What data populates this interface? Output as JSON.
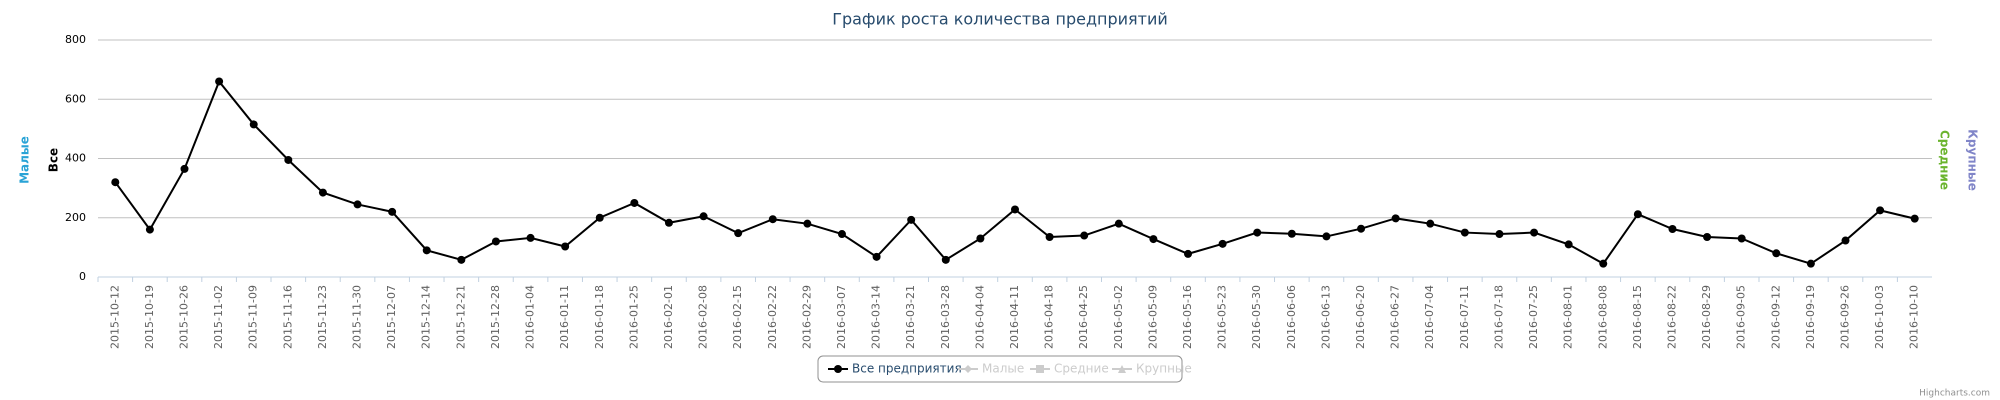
{
  "chart_data": {
    "type": "line",
    "title": "График роста количества предприятий",
    "categories": [
      "2015-10-12",
      "2015-10-19",
      "2015-10-26",
      "2015-11-02",
      "2015-11-09",
      "2015-11-16",
      "2015-11-23",
      "2015-11-30",
      "2015-12-07",
      "2015-12-14",
      "2015-12-21",
      "2015-12-28",
      "2016-01-04",
      "2016-01-11",
      "2016-01-18",
      "2016-01-25",
      "2016-02-01",
      "2016-02-08",
      "2016-02-15",
      "2016-02-22",
      "2016-02-29",
      "2016-03-07",
      "2016-03-14",
      "2016-03-21",
      "2016-03-28",
      "2016-04-04",
      "2016-04-11",
      "2016-04-18",
      "2016-04-25",
      "2016-05-02",
      "2016-05-09",
      "2016-05-16",
      "2016-05-23",
      "2016-05-30",
      "2016-06-06",
      "2016-06-13",
      "2016-06-20",
      "2016-06-27",
      "2016-07-04",
      "2016-07-11",
      "2016-07-18",
      "2016-07-25",
      "2016-08-01",
      "2016-08-08",
      "2016-08-15",
      "2016-08-22",
      "2016-08-29",
      "2016-09-05",
      "2016-09-12",
      "2016-09-19",
      "2016-09-26",
      "2016-10-03",
      "2016-10-10"
    ],
    "series": [
      {
        "name": "Все предприятия",
        "color": "#000000",
        "values": [
          320,
          160,
          365,
          660,
          515,
          395,
          285,
          245,
          220,
          90,
          58,
          120,
          132,
          103,
          200,
          250,
          183,
          205,
          148,
          195,
          180,
          145,
          68,
          193,
          58,
          130,
          228,
          135,
          140,
          180,
          128,
          78,
          112,
          150,
          146,
          137,
          163,
          198,
          180,
          150,
          145,
          150,
          110,
          45,
          212,
          162,
          135,
          130,
          80,
          45,
          123,
          225,
          197
        ]
      }
    ],
    "legend_items": [
      {
        "name": "Все предприятия",
        "marker": "circle",
        "visible": true
      },
      {
        "name": "Малые",
        "marker": "diamond",
        "visible": false
      },
      {
        "name": "Средние",
        "marker": "square",
        "visible": false
      },
      {
        "name": "Крупные",
        "marker": "triangle",
        "visible": false
      }
    ],
    "axis_titles": [
      {
        "text": "Малые",
        "color": "#29a3d6",
        "side": "left"
      },
      {
        "text": "Все",
        "color": "#000000",
        "side": "left"
      },
      {
        "text": "Средние",
        "color": "#6ab42d",
        "side": "right"
      },
      {
        "text": "Крупные",
        "color": "#8085c8",
        "side": "right"
      }
    ],
    "ylim": [
      0,
      800
    ],
    "yticks": [
      0,
      200,
      400,
      600,
      800
    ],
    "grid": true,
    "credits": "Highcharts.com"
  }
}
